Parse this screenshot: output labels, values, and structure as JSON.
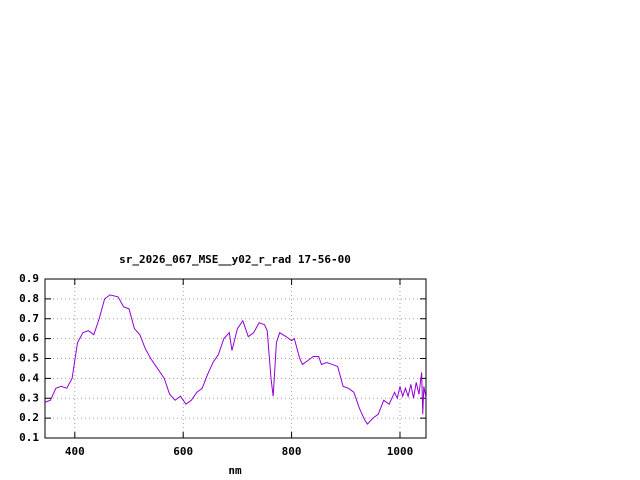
{
  "chart_data": {
    "type": "line",
    "title": "sr_2026_067_MSE__y02_r_rad 17-56-00",
    "x_label": "nm",
    "x": [
      345,
      355,
      365,
      375,
      385,
      395,
      405,
      415,
      425,
      435,
      445,
      455,
      465,
      480,
      490,
      500,
      510,
      520,
      530,
      540,
      550,
      565,
      575,
      585,
      595,
      605,
      615,
      625,
      635,
      645,
      655,
      665,
      675,
      685,
      690,
      700,
      710,
      720,
      730,
      740,
      750,
      755,
      762,
      766,
      772,
      778,
      790,
      800,
      805,
      815,
      820,
      830,
      840,
      850,
      855,
      865,
      875,
      885,
      895,
      905,
      915,
      925,
      935,
      940,
      950,
      960,
      970,
      980,
      990,
      995,
      1000,
      1005,
      1010,
      1015,
      1020,
      1025,
      1030,
      1035,
      1040,
      1042,
      1044,
      1048
    ],
    "values": [
      0.28,
      0.29,
      0.35,
      0.36,
      0.35,
      0.4,
      0.58,
      0.63,
      0.64,
      0.62,
      0.7,
      0.8,
      0.82,
      0.81,
      0.76,
      0.75,
      0.65,
      0.62,
      0.55,
      0.5,
      0.46,
      0.4,
      0.32,
      0.29,
      0.31,
      0.27,
      0.29,
      0.33,
      0.35,
      0.42,
      0.48,
      0.52,
      0.6,
      0.63,
      0.54,
      0.65,
      0.69,
      0.61,
      0.63,
      0.68,
      0.67,
      0.64,
      0.4,
      0.31,
      0.58,
      0.63,
      0.61,
      0.59,
      0.6,
      0.5,
      0.47,
      0.49,
      0.51,
      0.51,
      0.47,
      0.48,
      0.47,
      0.46,
      0.36,
      0.35,
      0.33,
      0.25,
      0.19,
      0.17,
      0.2,
      0.22,
      0.29,
      0.27,
      0.33,
      0.3,
      0.36,
      0.31,
      0.35,
      0.31,
      0.37,
      0.3,
      0.38,
      0.32,
      0.43,
      0.22,
      0.36,
      0.3
    ],
    "color": "#9400d3",
    "xlim": [
      345,
      1048
    ],
    "xticks": [
      400,
      600,
      800,
      1000
    ],
    "ylim": [
      0.1,
      0.9
    ],
    "yticks": [
      0.1,
      0.2,
      0.3,
      0.4,
      0.5,
      0.6,
      0.7,
      0.8,
      0.9
    ],
    "grid": true
  }
}
